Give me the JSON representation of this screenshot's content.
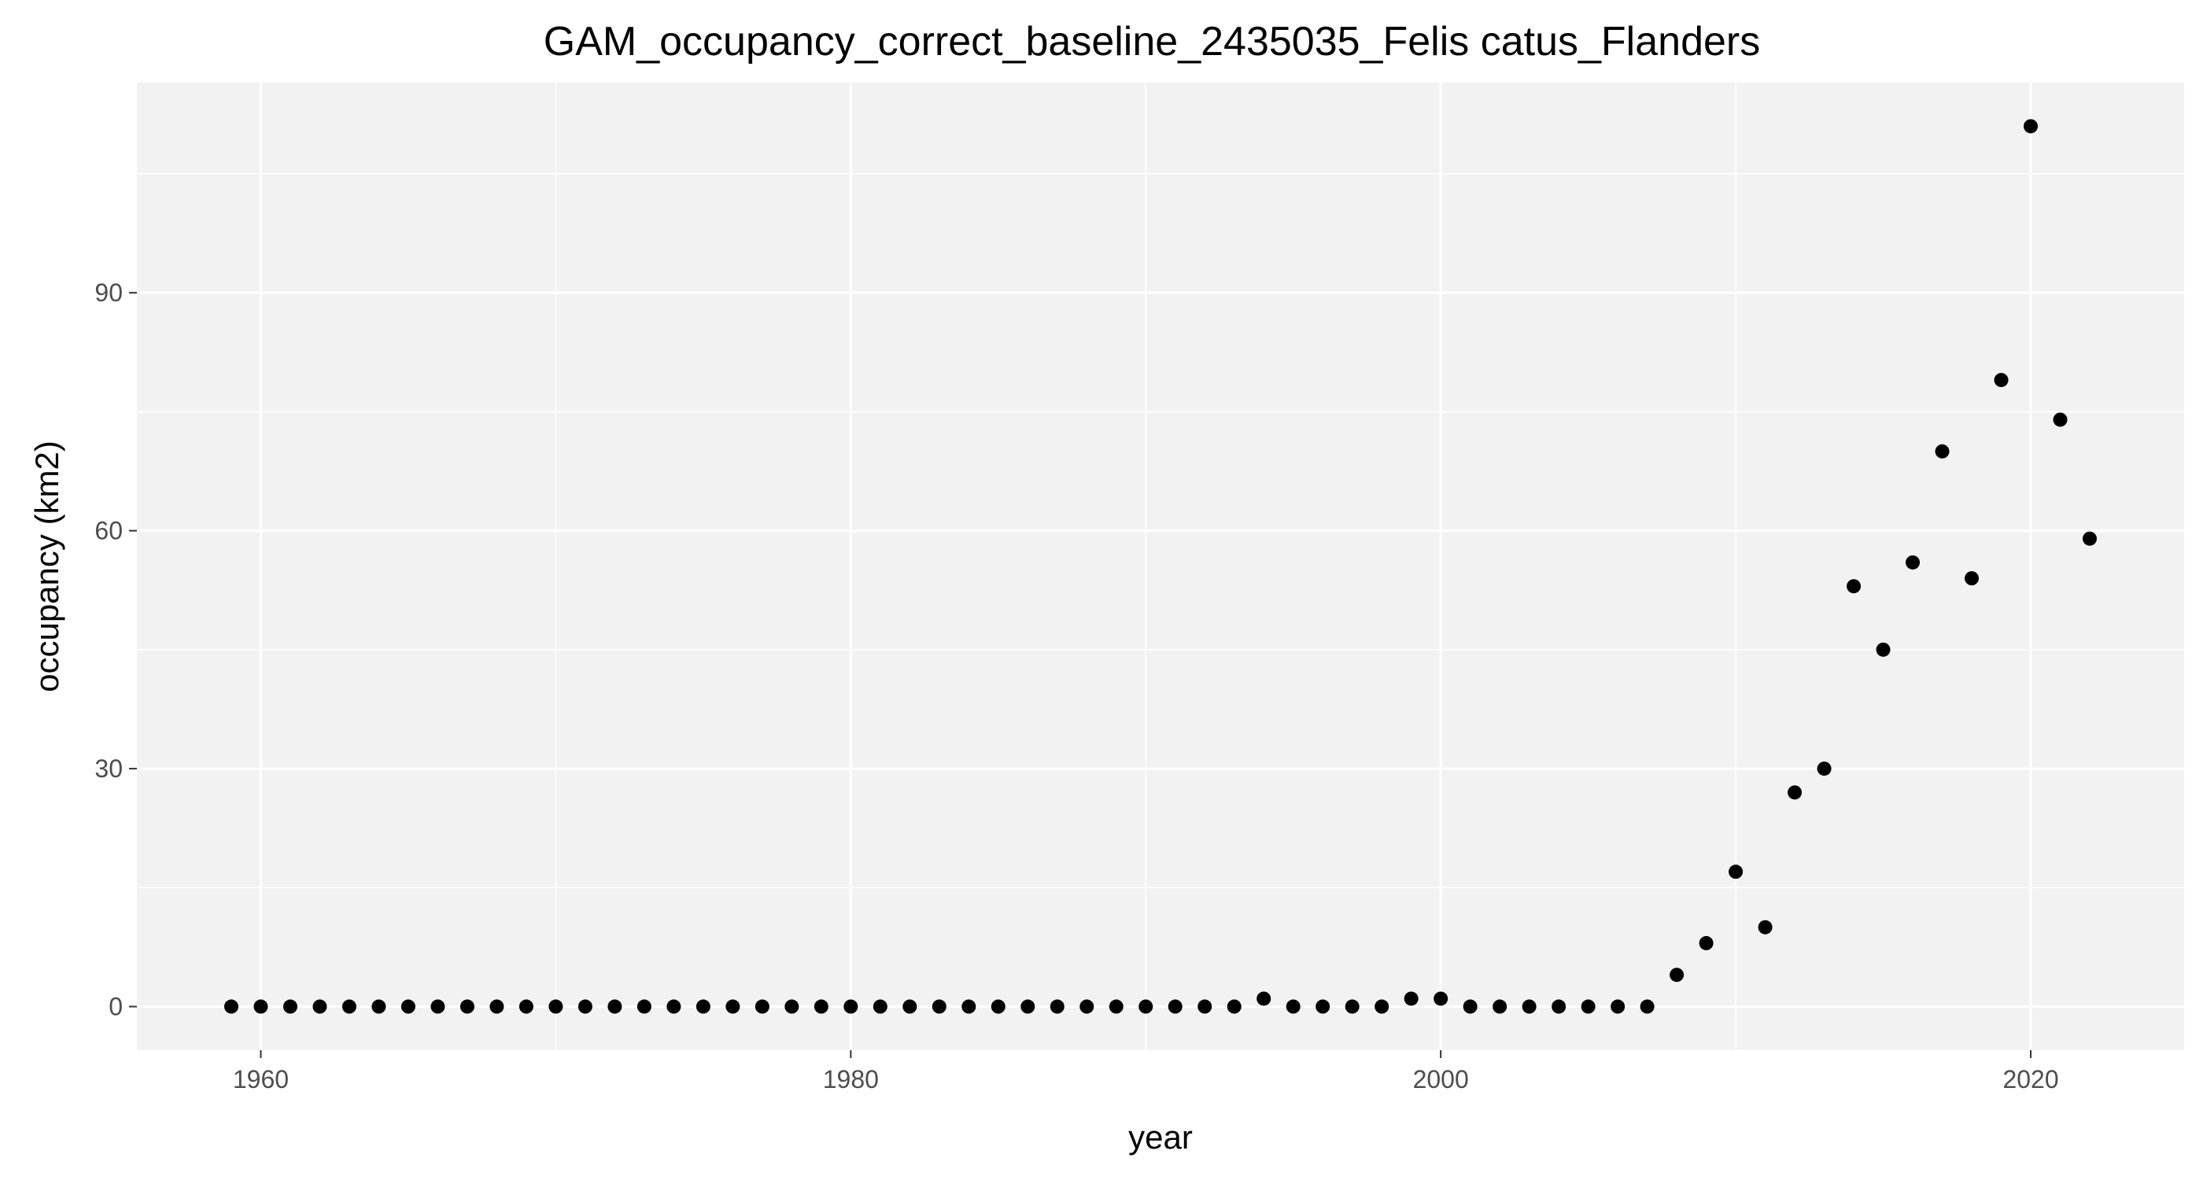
{
  "chart_data": {
    "type": "scatter",
    "title": "GAM_occupancy_correct_baseline_2435035_Felis catus_Flanders",
    "xlabel": "year",
    "ylabel": "occupancy (km2)",
    "xlim": [
      1955.8,
      2025.2
    ],
    "ylim": [
      -5.5,
      116.5
    ],
    "x_ticks": [
      1960,
      1980,
      2000,
      2020
    ],
    "y_ticks": [
      0,
      30,
      60,
      90
    ],
    "x_minor_ticks": [
      1970,
      1990,
      2010
    ],
    "y_minor_ticks": [
      15,
      45,
      75,
      105
    ],
    "grid": true,
    "legend": "none",
    "colors": {
      "panel_background": "#f2f2f2",
      "point": "#000000",
      "grid": "#ffffff"
    },
    "series": [
      {
        "x": [
          1959,
          1960,
          1961,
          1962,
          1963,
          1964,
          1965,
          1966,
          1967,
          1968,
          1969,
          1970,
          1971,
          1972,
          1973,
          1974,
          1975,
          1976,
          1977,
          1978,
          1979,
          1980,
          1981,
          1982,
          1983,
          1984,
          1985,
          1986,
          1987,
          1988,
          1989,
          1990,
          1991,
          1992,
          1993,
          1994,
          1995,
          1996,
          1997,
          1998,
          1999,
          2000,
          2001,
          2002,
          2003,
          2004,
          2005,
          2006,
          2007,
          2008,
          2009,
          2010,
          2011,
          2012,
          2013,
          2014,
          2015,
          2016,
          2017,
          2018,
          2019,
          2020,
          2021,
          2022
        ],
        "y": [
          0,
          0,
          0,
          0,
          0,
          0,
          0,
          0,
          0,
          0,
          0,
          0,
          0,
          0,
          0,
          0,
          0,
          0,
          0,
          0,
          0,
          0,
          0,
          0,
          0,
          0,
          0,
          0,
          0,
          0,
          0,
          0,
          0,
          0,
          0,
          1,
          0,
          0,
          0,
          0,
          1,
          1,
          0,
          0,
          0,
          0,
          0,
          0,
          0,
          4,
          8,
          17,
          10,
          27,
          30,
          53,
          45,
          56,
          70,
          54,
          79,
          111,
          74,
          59
        ]
      }
    ]
  }
}
